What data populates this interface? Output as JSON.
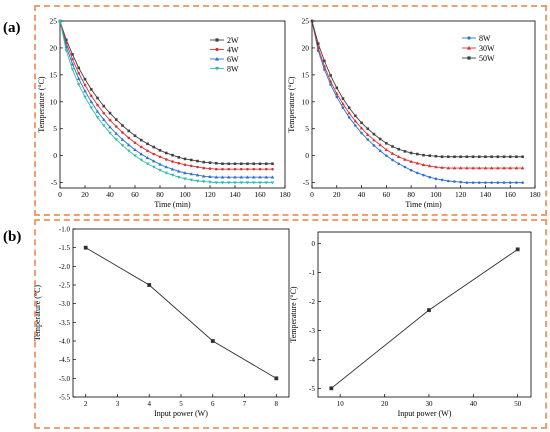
{
  "panel_labels": {
    "a": "(a)",
    "b": "(b)"
  },
  "chart_data": [
    {
      "type": "line",
      "xlabel": "Time (min)",
      "ylabel": "Temperature (°C)",
      "xlim": [
        0,
        180
      ],
      "ylim": [
        -6,
        25
      ],
      "xticks": [
        0,
        20,
        40,
        60,
        80,
        100,
        120,
        140,
        160,
        180
      ],
      "yticks": [
        -5,
        0,
        5,
        10,
        15,
        20,
        25
      ],
      "legend_position": "top-right",
      "x": [
        0,
        5,
        10,
        15,
        20,
        25,
        30,
        35,
        40,
        45,
        50,
        55,
        60,
        65,
        70,
        75,
        80,
        85,
        90,
        95,
        100,
        105,
        110,
        115,
        120,
        125,
        130,
        135,
        140,
        145,
        150,
        155,
        160,
        165,
        170
      ],
      "series": [
        {
          "name": "2W",
          "color": "#404040",
          "marker": "square",
          "values": [
            25,
            21.5,
            18.8,
            16.3,
            14.2,
            12.3,
            10.7,
            9.2,
            7.9,
            6.7,
            5.6,
            4.6,
            3.7,
            2.9,
            2.2,
            1.6,
            1.0,
            0.5,
            0.1,
            -0.3,
            -0.6,
            -0.8,
            -1.0,
            -1.2,
            -1.3,
            -1.4,
            -1.5,
            -1.5,
            -1.5,
            -1.5,
            -1.5,
            -1.5,
            -1.5,
            -1.5,
            -1.5
          ]
        },
        {
          "name": "4W",
          "color": "#e03030",
          "marker": "circle",
          "values": [
            25,
            20.9,
            17.9,
            15.3,
            13.1,
            11.1,
            9.4,
            7.9,
            6.6,
            5.4,
            4.3,
            3.3,
            2.4,
            1.6,
            0.9,
            0.3,
            -0.2,
            -0.7,
            -1.1,
            -1.4,
            -1.7,
            -1.9,
            -2.1,
            -2.3,
            -2.4,
            -2.5,
            -2.5,
            -2.5,
            -2.5,
            -2.5,
            -2.5,
            -2.5,
            -2.5,
            -2.5,
            -2.5
          ]
        },
        {
          "name": "6W",
          "color": "#3070d0",
          "marker": "triangle",
          "values": [
            25,
            20.2,
            17.0,
            14.3,
            12.0,
            10.0,
            8.2,
            6.7,
            5.3,
            4.1,
            3.0,
            2.0,
            1.1,
            0.3,
            -0.4,
            -1.0,
            -1.6,
            -2.1,
            -2.5,
            -2.9,
            -3.2,
            -3.4,
            -3.6,
            -3.8,
            -3.9,
            -4.0,
            -4.0,
            -4.0,
            -4.0,
            -4.0,
            -4.0,
            -4.0,
            -4.0,
            -4.0,
            -4.0
          ]
        },
        {
          "name": "8W",
          "color": "#30c0a8",
          "marker": "triangle-down",
          "values": [
            25,
            19.5,
            16.0,
            13.2,
            10.9,
            8.9,
            7.1,
            5.6,
            4.2,
            3.0,
            1.9,
            0.9,
            0.0,
            -0.8,
            -1.5,
            -2.1,
            -2.7,
            -3.2,
            -3.6,
            -4.0,
            -4.3,
            -4.5,
            -4.7,
            -4.8,
            -4.9,
            -5.0,
            -5.0,
            -5.0,
            -5.0,
            -5.0,
            -5.0,
            -5.0,
            -5.0,
            -5.0,
            -5.0
          ]
        }
      ]
    },
    {
      "type": "line",
      "xlabel": "Time (min)",
      "ylabel": "Temperature (°C)",
      "xlim": [
        0,
        180
      ],
      "ylim": [
        -6,
        25
      ],
      "xticks": [
        0,
        20,
        40,
        60,
        80,
        100,
        120,
        140,
        160,
        180
      ],
      "yticks": [
        -5,
        0,
        5,
        10,
        15,
        20,
        25
      ],
      "legend_position": "top-right",
      "x": [
        0,
        5,
        10,
        15,
        20,
        25,
        30,
        35,
        40,
        45,
        50,
        55,
        60,
        65,
        70,
        75,
        80,
        85,
        90,
        95,
        100,
        105,
        110,
        115,
        120,
        125,
        130,
        135,
        140,
        145,
        150,
        155,
        160,
        165,
        170
      ],
      "series": [
        {
          "name": "8W",
          "color": "#3070d0",
          "marker": "circle",
          "values": [
            25,
            19.5,
            16.0,
            13.2,
            10.9,
            8.9,
            7.1,
            5.6,
            4.2,
            3.0,
            1.9,
            0.9,
            0.0,
            -0.8,
            -1.5,
            -2.1,
            -2.7,
            -3.2,
            -3.6,
            -4.0,
            -4.3,
            -4.5,
            -4.7,
            -4.8,
            -4.9,
            -5.0,
            -5.0,
            -5.0,
            -5.0,
            -5.0,
            -5.0,
            -5.0,
            -5.0,
            -5.0,
            -5.0
          ]
        },
        {
          "name": "30W",
          "color": "#e03030",
          "marker": "triangle",
          "values": [
            25,
            20.0,
            16.6,
            13.8,
            11.5,
            9.6,
            7.9,
            6.4,
            5.1,
            3.9,
            2.9,
            2.0,
            1.1,
            0.4,
            -0.2,
            -0.7,
            -1.1,
            -1.4,
            -1.7,
            -1.9,
            -2.1,
            -2.2,
            -2.3,
            -2.3,
            -2.3,
            -2.3,
            -2.3,
            -2.3,
            -2.3,
            -2.3,
            -2.3,
            -2.3,
            -2.3,
            -2.3,
            -2.3
          ]
        },
        {
          "name": "50W",
          "color": "#404040",
          "marker": "square",
          "values": [
            25,
            20.8,
            17.6,
            14.9,
            12.6,
            10.6,
            8.9,
            7.4,
            6.1,
            5.0,
            4.0,
            3.1,
            2.3,
            1.7,
            1.2,
            0.8,
            0.5,
            0.3,
            0.1,
            0.0,
            -0.1,
            -0.2,
            -0.2,
            -0.2,
            -0.2,
            -0.2,
            -0.2,
            -0.2,
            -0.2,
            -0.2,
            -0.2,
            -0.2,
            -0.2,
            -0.2,
            -0.2
          ]
        }
      ]
    },
    {
      "type": "line",
      "xlabel": "Input power (W)",
      "ylabel": "Temperature (°C)",
      "xlim": [
        1.6,
        8.4
      ],
      "ylim": [
        -5.5,
        -1.0
      ],
      "xticks": [
        2,
        3,
        4,
        5,
        6,
        7,
        8
      ],
      "yticks": [
        -5.5,
        -5.0,
        -4.5,
        -4.0,
        -3.5,
        -3.0,
        -2.5,
        -2.0,
        -1.5,
        -1.0
      ],
      "ytick_labels": [
        "-5.5",
        "-5.0",
        "-4.5",
        "-4.0",
        "-3.5",
        "-3.0",
        "-2.5",
        "-2.0",
        "-1.5",
        "-1.0"
      ],
      "series": [
        {
          "color": "#303030",
          "marker": "square",
          "x": [
            2,
            4,
            6,
            8
          ],
          "values": [
            -1.5,
            -2.5,
            -4.0,
            -5.0
          ]
        }
      ]
    },
    {
      "type": "line",
      "xlabel": "Input power (W)",
      "ylabel": "Temperature (°C)",
      "xlim": [
        5,
        53
      ],
      "ylim": [
        -5.3,
        0.4
      ],
      "xticks": [
        10,
        20,
        30,
        40,
        50
      ],
      "yticks": [
        -5,
        -4,
        -3,
        -2,
        -1,
        0
      ],
      "ytick_labels": [
        "-5",
        "-4",
        "-3",
        "-2",
        "-1",
        "0"
      ],
      "series": [
        {
          "color": "#303030",
          "marker": "square",
          "x": [
            8,
            30,
            50
          ],
          "values": [
            -5.0,
            -2.3,
            -0.2
          ]
        }
      ]
    }
  ]
}
